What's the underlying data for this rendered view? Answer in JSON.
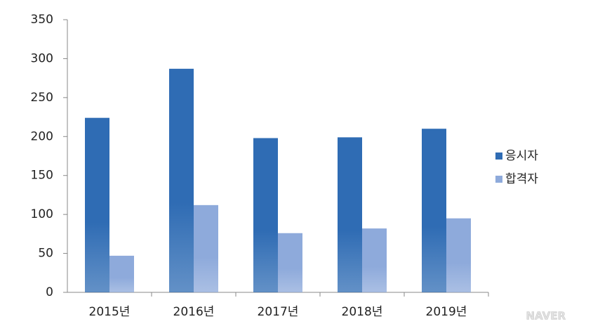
{
  "chart_data": {
    "type": "bar",
    "categories": [
      "2015년",
      "2016년",
      "2017년",
      "2018년",
      "2019년"
    ],
    "series": [
      {
        "name": "응시자",
        "color": "#2f6cb4",
        "values": [
          224,
          287,
          198,
          199,
          210
        ]
      },
      {
        "name": "합격자",
        "color": "#8eaadb",
        "values": [
          47,
          112,
          76,
          82,
          95
        ]
      }
    ],
    "ylim": [
      0,
      350
    ],
    "yticks": [
      0,
      50,
      100,
      150,
      200,
      250,
      300,
      350
    ],
    "grid": false,
    "legend": "right",
    "watermark": "NAVER"
  }
}
